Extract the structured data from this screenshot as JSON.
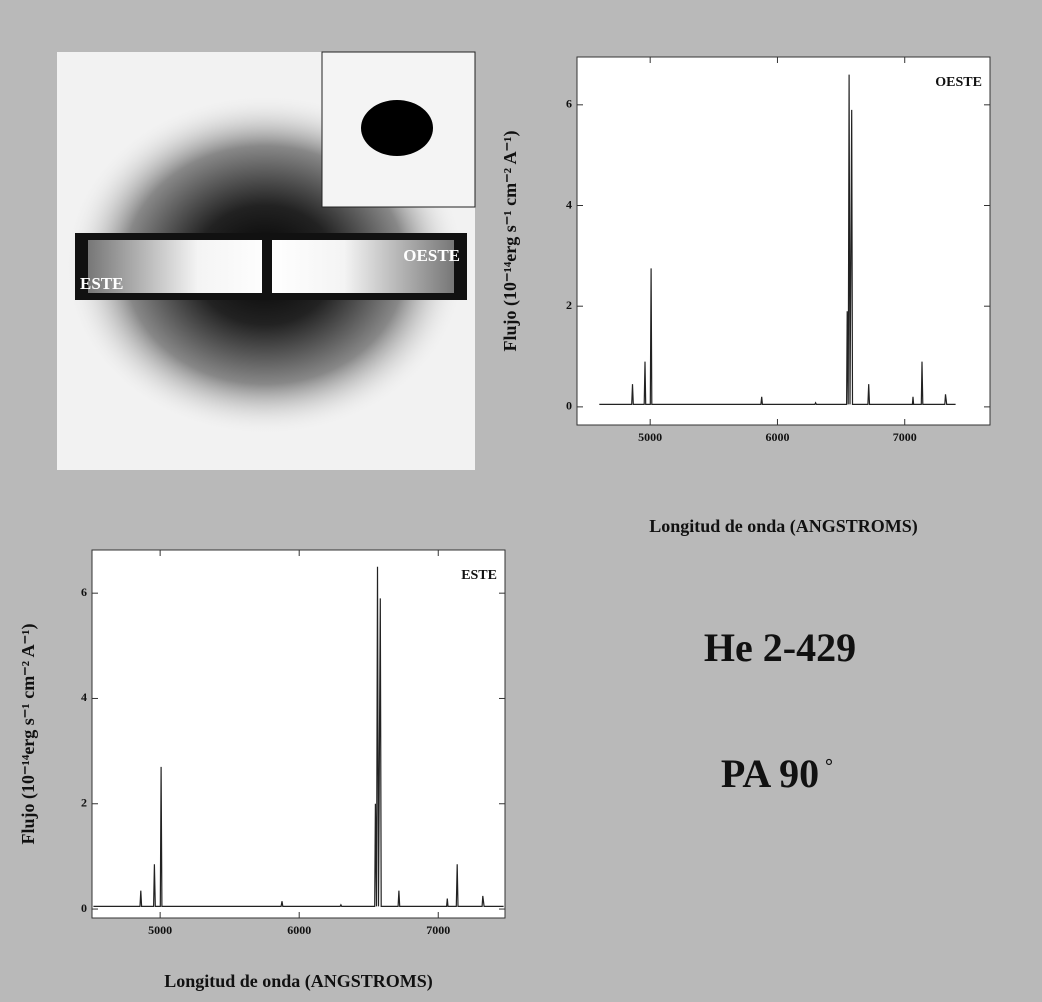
{
  "object_name": "He 2-429",
  "position_angle": "PA 90",
  "degree_sign": "°",
  "image": {
    "labels": [
      "ESTE",
      "OESTE"
    ]
  },
  "chart_data": [
    {
      "type": "line",
      "label": "OESTE",
      "x_label": "Longitud de onda (ANGSTROMS)",
      "y_label": "Flujo (10⁻¹⁴erg s⁻¹ cm⁻² A⁻¹)",
      "xlim": [
        4425,
        7670
      ],
      "ylim": [
        -0.36,
        6.95
      ],
      "xticks": [
        5000,
        6000,
        7000
      ],
      "yticks": [
        0,
        2,
        4,
        6
      ],
      "series": [
        {
          "color": "#222222",
          "x": [
            4600,
            4700,
            4855,
            4861,
            4867,
            4953,
            4959,
            4965,
            5001,
            5007,
            5013,
            5400,
            5870,
            5876,
            5882,
            6294,
            6300,
            6306,
            6543,
            6548,
            6556,
            6563,
            6570,
            6583,
            6590,
            6711,
            6717,
            6723,
            7060,
            7065,
            7070,
            7130,
            7136,
            7142,
            7315,
            7320,
            7330,
            7400
          ],
          "values": [
            0.05,
            0.05,
            0.05,
            0.45,
            0.05,
            0.05,
            0.9,
            0.05,
            0.05,
            2.75,
            0.05,
            0.05,
            0.05,
            0.2,
            0.05,
            0.05,
            0.08,
            0.05,
            0.05,
            1.9,
            0.05,
            6.6,
            0.05,
            5.9,
            0.05,
            0.05,
            0.45,
            0.05,
            0.05,
            0.2,
            0.05,
            0.05,
            0.9,
            0.05,
            0.05,
            0.25,
            0.05,
            0.05
          ]
        }
      ]
    },
    {
      "type": "line",
      "label": "ESTE",
      "x_label": "Longitud de onda (ANGSTROMS)",
      "y_label": "Flujo (10⁻¹⁴erg s⁻¹ cm⁻² A⁻¹)",
      "xlim": [
        4510,
        7480
      ],
      "ylim": [
        -0.17,
        6.82
      ],
      "xticks": [
        5000,
        6000,
        7000
      ],
      "yticks": [
        0,
        2,
        4,
        6
      ],
      "series": [
        {
          "color": "#222222",
          "x": [
            4520,
            4700,
            4855,
            4861,
            4867,
            4953,
            4959,
            4965,
            5001,
            5007,
            5013,
            5400,
            5870,
            5876,
            5882,
            6294,
            6300,
            6306,
            6543,
            6548,
            6556,
            6563,
            6570,
            6583,
            6590,
            6711,
            6717,
            6723,
            7060,
            7065,
            7070,
            7130,
            7136,
            7142,
            7315,
            7320,
            7330,
            7470
          ],
          "values": [
            0.05,
            0.05,
            0.05,
            0.35,
            0.05,
            0.05,
            0.85,
            0.05,
            0.05,
            2.7,
            0.05,
            0.05,
            0.05,
            0.15,
            0.05,
            0.05,
            0.08,
            0.05,
            0.05,
            2.0,
            0.05,
            6.5,
            0.05,
            5.9,
            0.05,
            0.05,
            0.35,
            0.05,
            0.05,
            0.2,
            0.05,
            0.05,
            0.85,
            0.05,
            0.05,
            0.25,
            0.05,
            0.05
          ]
        }
      ]
    }
  ]
}
